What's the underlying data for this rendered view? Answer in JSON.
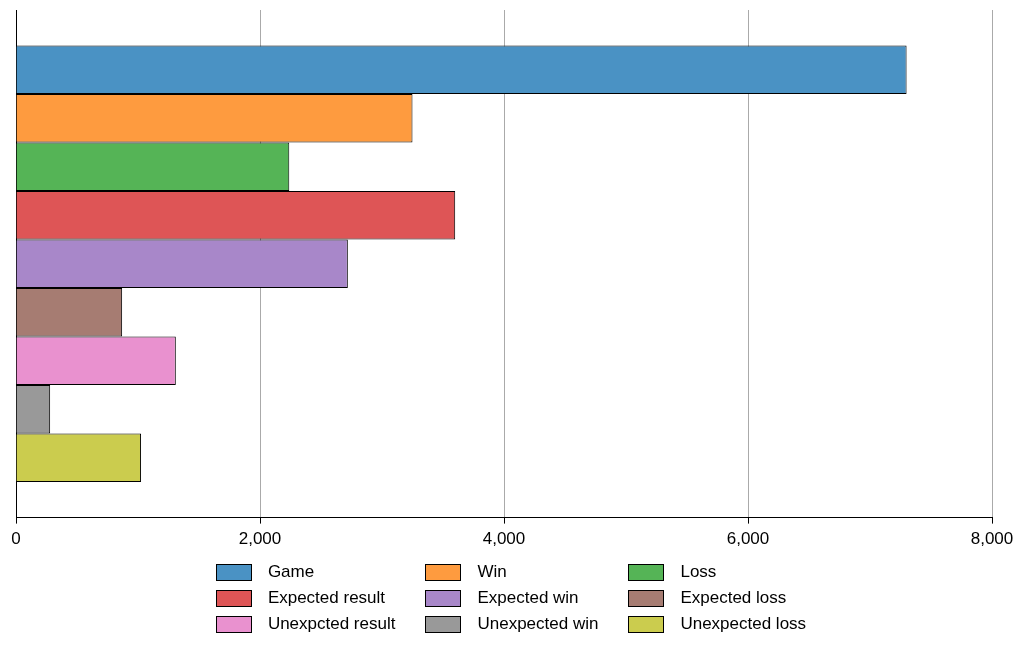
{
  "chart_data": {
    "type": "bar",
    "orientation": "horizontal",
    "categories": [
      null
    ],
    "series": [
      {
        "name": "Game",
        "color": "#4a92c4",
        "values": [
          7300
        ]
      },
      {
        "name": "Win",
        "color": "#fe9b3f",
        "values": [
          3250
        ]
      },
      {
        "name": "Loss",
        "color": "#55b456",
        "values": [
          2240
        ]
      },
      {
        "name": "Expected result",
        "color": "#de5556",
        "values": [
          3600
        ]
      },
      {
        "name": "Expected win",
        "color": "#a887c9",
        "values": [
          2720
        ]
      },
      {
        "name": "Expected loss",
        "color": "#a67c72",
        "values": [
          870
        ]
      },
      {
        "name": "Unexpcted result",
        "color": "#e991cf",
        "values": [
          1310
        ]
      },
      {
        "name": "Unexpected win",
        "color": "#999999",
        "values": [
          280
        ]
      },
      {
        "name": "Unexpected loss",
        "color": "#cbcc4e",
        "values": [
          1025
        ]
      }
    ],
    "xlim": [
      0,
      8000
    ],
    "xticks": [
      {
        "value": 0,
        "label": "0"
      },
      {
        "value": 2000,
        "label": "2,000"
      },
      {
        "value": 4000,
        "label": "4,000"
      },
      {
        "value": 6000,
        "label": "6,000"
      },
      {
        "value": 8000,
        "label": "8,000"
      }
    ],
    "grid": "x",
    "legend": "bottom",
    "tick_labels": "x"
  }
}
